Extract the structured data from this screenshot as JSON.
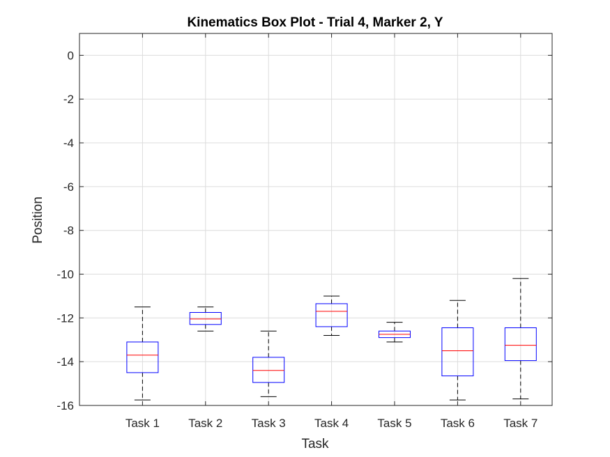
{
  "chart_data": {
    "type": "box",
    "title": "Kinematics Box Plot - Trial 4, Marker 2, Y",
    "xlabel": "Task",
    "ylabel": "Position",
    "ylim": [
      -16,
      1
    ],
    "yticks": [
      0,
      -2,
      -4,
      -6,
      -8,
      -10,
      -12,
      -14,
      -16
    ],
    "yticklabels": [
      "0",
      "-2",
      "-4",
      "-6",
      "-8",
      "-10",
      "-12",
      "-14",
      "-16"
    ],
    "grid": true,
    "categories": [
      "Task 1",
      "Task 2",
      "Task 3",
      "Task 4",
      "Task 5",
      "Task 6",
      "Task 7"
    ],
    "boxes": [
      {
        "whisker_low": -15.75,
        "q1": -14.5,
        "median": -13.7,
        "q3": -13.1,
        "whisker_high": -11.5
      },
      {
        "whisker_low": -12.6,
        "q1": -12.3,
        "median": -12.05,
        "q3": -11.75,
        "whisker_high": -11.5
      },
      {
        "whisker_low": -15.6,
        "q1": -14.95,
        "median": -14.4,
        "q3": -13.8,
        "whisker_high": -12.6
      },
      {
        "whisker_low": -12.8,
        "q1": -12.4,
        "median": -11.7,
        "q3": -11.35,
        "whisker_high": -11.0
      },
      {
        "whisker_low": -13.1,
        "q1": -12.9,
        "median": -12.75,
        "q3": -12.6,
        "whisker_high": -12.2
      },
      {
        "whisker_low": -15.75,
        "q1": -14.65,
        "median": -13.5,
        "q3": -12.45,
        "whisker_high": -11.2
      },
      {
        "whisker_low": -15.7,
        "q1": -13.95,
        "median": -13.25,
        "q3": -12.45,
        "whisker_high": -10.2
      }
    ],
    "colors": {
      "box": "#0000ff",
      "median": "#ff0000",
      "whisker": "#000000",
      "grid": "#dcdcdc",
      "axis": "#262626"
    }
  }
}
